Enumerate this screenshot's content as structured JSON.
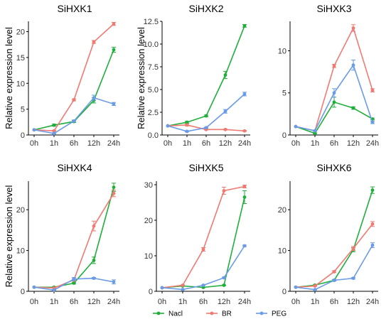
{
  "legend": {
    "placement": "bottom",
    "items": [
      {
        "name": "Nacl",
        "color": "#1fae3a"
      },
      {
        "name": "BR",
        "color": "#f07a72"
      },
      {
        "name": "PEG",
        "color": "#6a9be6"
      }
    ]
  },
  "chart_data": [
    {
      "type": "line",
      "title": "SiHXK1",
      "ylabel": "Relative expression level",
      "categories": [
        "0h",
        "1h",
        "6h",
        "12h",
        "24h"
      ],
      "ylim": [
        0,
        22
      ],
      "yticks": [
        0,
        5,
        10,
        15,
        20
      ],
      "grid": false,
      "series": [
        {
          "name": "Nacl",
          "values": [
            1,
            1.9,
            2.6,
            6.7,
            16.5
          ],
          "errors": [
            0,
            0.2,
            0.2,
            0.5,
            0.5
          ]
        },
        {
          "name": "BR",
          "values": [
            1,
            0.8,
            6.8,
            18.0,
            21.5
          ],
          "errors": [
            0,
            0.1,
            0.2,
            0.3,
            0.3
          ]
        },
        {
          "name": "PEG",
          "values": [
            1,
            0.3,
            2.7,
            7.2,
            6.0
          ],
          "errors": [
            0,
            0.1,
            0.2,
            0.5,
            0.3
          ]
        }
      ]
    },
    {
      "type": "line",
      "title": "SiHXK2",
      "ylabel": "Relative expression level",
      "categories": [
        "0h",
        "1h",
        "6h",
        "12h",
        "24h"
      ],
      "ylim": [
        0,
        12.5
      ],
      "yticks": [
        0,
        2.5,
        5,
        7.5,
        10,
        12.5
      ],
      "yticklabels": [
        "0.0",
        "2.5",
        "5.0",
        "7.5",
        "10.0",
        "12.5"
      ],
      "grid": false,
      "series": [
        {
          "name": "Nacl",
          "values": [
            1,
            1.4,
            2.1,
            6.6,
            12.0
          ],
          "errors": [
            0,
            0.1,
            0.1,
            0.4,
            0.15
          ]
        },
        {
          "name": "BR",
          "values": [
            1,
            1.1,
            0.6,
            0.6,
            0.45
          ],
          "errors": [
            0,
            0.1,
            0.05,
            0.05,
            0.05
          ]
        },
        {
          "name": "PEG",
          "values": [
            1,
            0.4,
            0.8,
            2.6,
            4.5
          ],
          "errors": [
            0,
            0.05,
            0.05,
            0.2,
            0.2
          ]
        }
      ]
    },
    {
      "type": "line",
      "title": "SiHXK3",
      "ylabel": "",
      "categories": [
        "0h",
        "1h",
        "6h",
        "12h",
        "24h"
      ],
      "ylim": [
        0,
        13.5
      ],
      "yticks": [
        0,
        5,
        10
      ],
      "grid": false,
      "series": [
        {
          "name": "Nacl",
          "values": [
            1,
            0.2,
            3.9,
            3.2,
            1.9
          ],
          "errors": [
            0,
            0.05,
            0.6,
            0.15,
            0.1
          ]
        },
        {
          "name": "BR",
          "values": [
            1,
            0.5,
            8.2,
            12.7,
            5.3
          ],
          "errors": [
            0,
            0.05,
            0.2,
            0.4,
            0.2
          ]
        },
        {
          "name": "PEG",
          "values": [
            1,
            0.5,
            5.0,
            8.3,
            1.5
          ],
          "errors": [
            0,
            0.05,
            0.5,
            0.6,
            0.15
          ]
        }
      ]
    },
    {
      "type": "line",
      "title": "SiHXK4",
      "ylabel": "Relative expression level",
      "categories": [
        "0h",
        "1h",
        "6h",
        "12h",
        "24h"
      ],
      "ylim": [
        0,
        27
      ],
      "yticks": [
        0,
        10,
        20
      ],
      "grid": false,
      "series": [
        {
          "name": "Nacl",
          "values": [
            1,
            1.0,
            2.0,
            7.6,
            25.5
          ],
          "errors": [
            0,
            0.1,
            0.2,
            0.8,
            1.0
          ]
        },
        {
          "name": "BR",
          "values": [
            1,
            0.8,
            2.8,
            16.0,
            24.0
          ],
          "errors": [
            0,
            0.1,
            0.3,
            1.2,
            0.8
          ]
        },
        {
          "name": "PEG",
          "values": [
            1,
            0.3,
            3.0,
            3.2,
            2.3
          ],
          "errors": [
            0,
            0.1,
            0.4,
            0.2,
            0.5
          ]
        }
      ]
    },
    {
      "type": "line",
      "title": "SiHXK5",
      "ylabel": "",
      "categories": [
        "0h",
        "1h",
        "6h",
        "12h",
        "24h"
      ],
      "ylim": [
        0,
        31
      ],
      "yticks": [
        0,
        10,
        20,
        30
      ],
      "grid": false,
      "series": [
        {
          "name": "Nacl",
          "values": [
            1,
            1.5,
            1.1,
            1.7,
            26.5
          ],
          "errors": [
            0,
            0.1,
            0.1,
            0.1,
            1.8
          ]
        },
        {
          "name": "BR",
          "values": [
            1,
            1.7,
            11.8,
            28.3,
            29.5
          ],
          "errors": [
            0,
            0.1,
            0.5,
            1.0,
            0.4
          ]
        },
        {
          "name": "PEG",
          "values": [
            1,
            0.5,
            1.7,
            3.8,
            12.8
          ],
          "errors": [
            0,
            0.05,
            0.1,
            0.2,
            0.2
          ]
        }
      ]
    },
    {
      "type": "line",
      "title": "SiHXK6",
      "ylabel": "",
      "categories": [
        "0h",
        "1h",
        "6h",
        "12h",
        "24h"
      ],
      "ylim": [
        0,
        27
      ],
      "yticks": [
        0,
        10,
        20
      ],
      "grid": false,
      "series": [
        {
          "name": "Nacl",
          "values": [
            1,
            1.5,
            2.7,
            10.2,
            24.8
          ],
          "errors": [
            0,
            0.1,
            0.2,
            0.5,
            0.8
          ]
        },
        {
          "name": "BR",
          "values": [
            1,
            1.3,
            4.8,
            10.5,
            16.5
          ],
          "errors": [
            0,
            0.1,
            0.2,
            0.5,
            0.6
          ]
        },
        {
          "name": "PEG",
          "values": [
            1,
            0.4,
            2.7,
            3.2,
            11.3
          ],
          "errors": [
            0,
            0.05,
            0.2,
            0.2,
            0.6
          ]
        }
      ]
    }
  ]
}
